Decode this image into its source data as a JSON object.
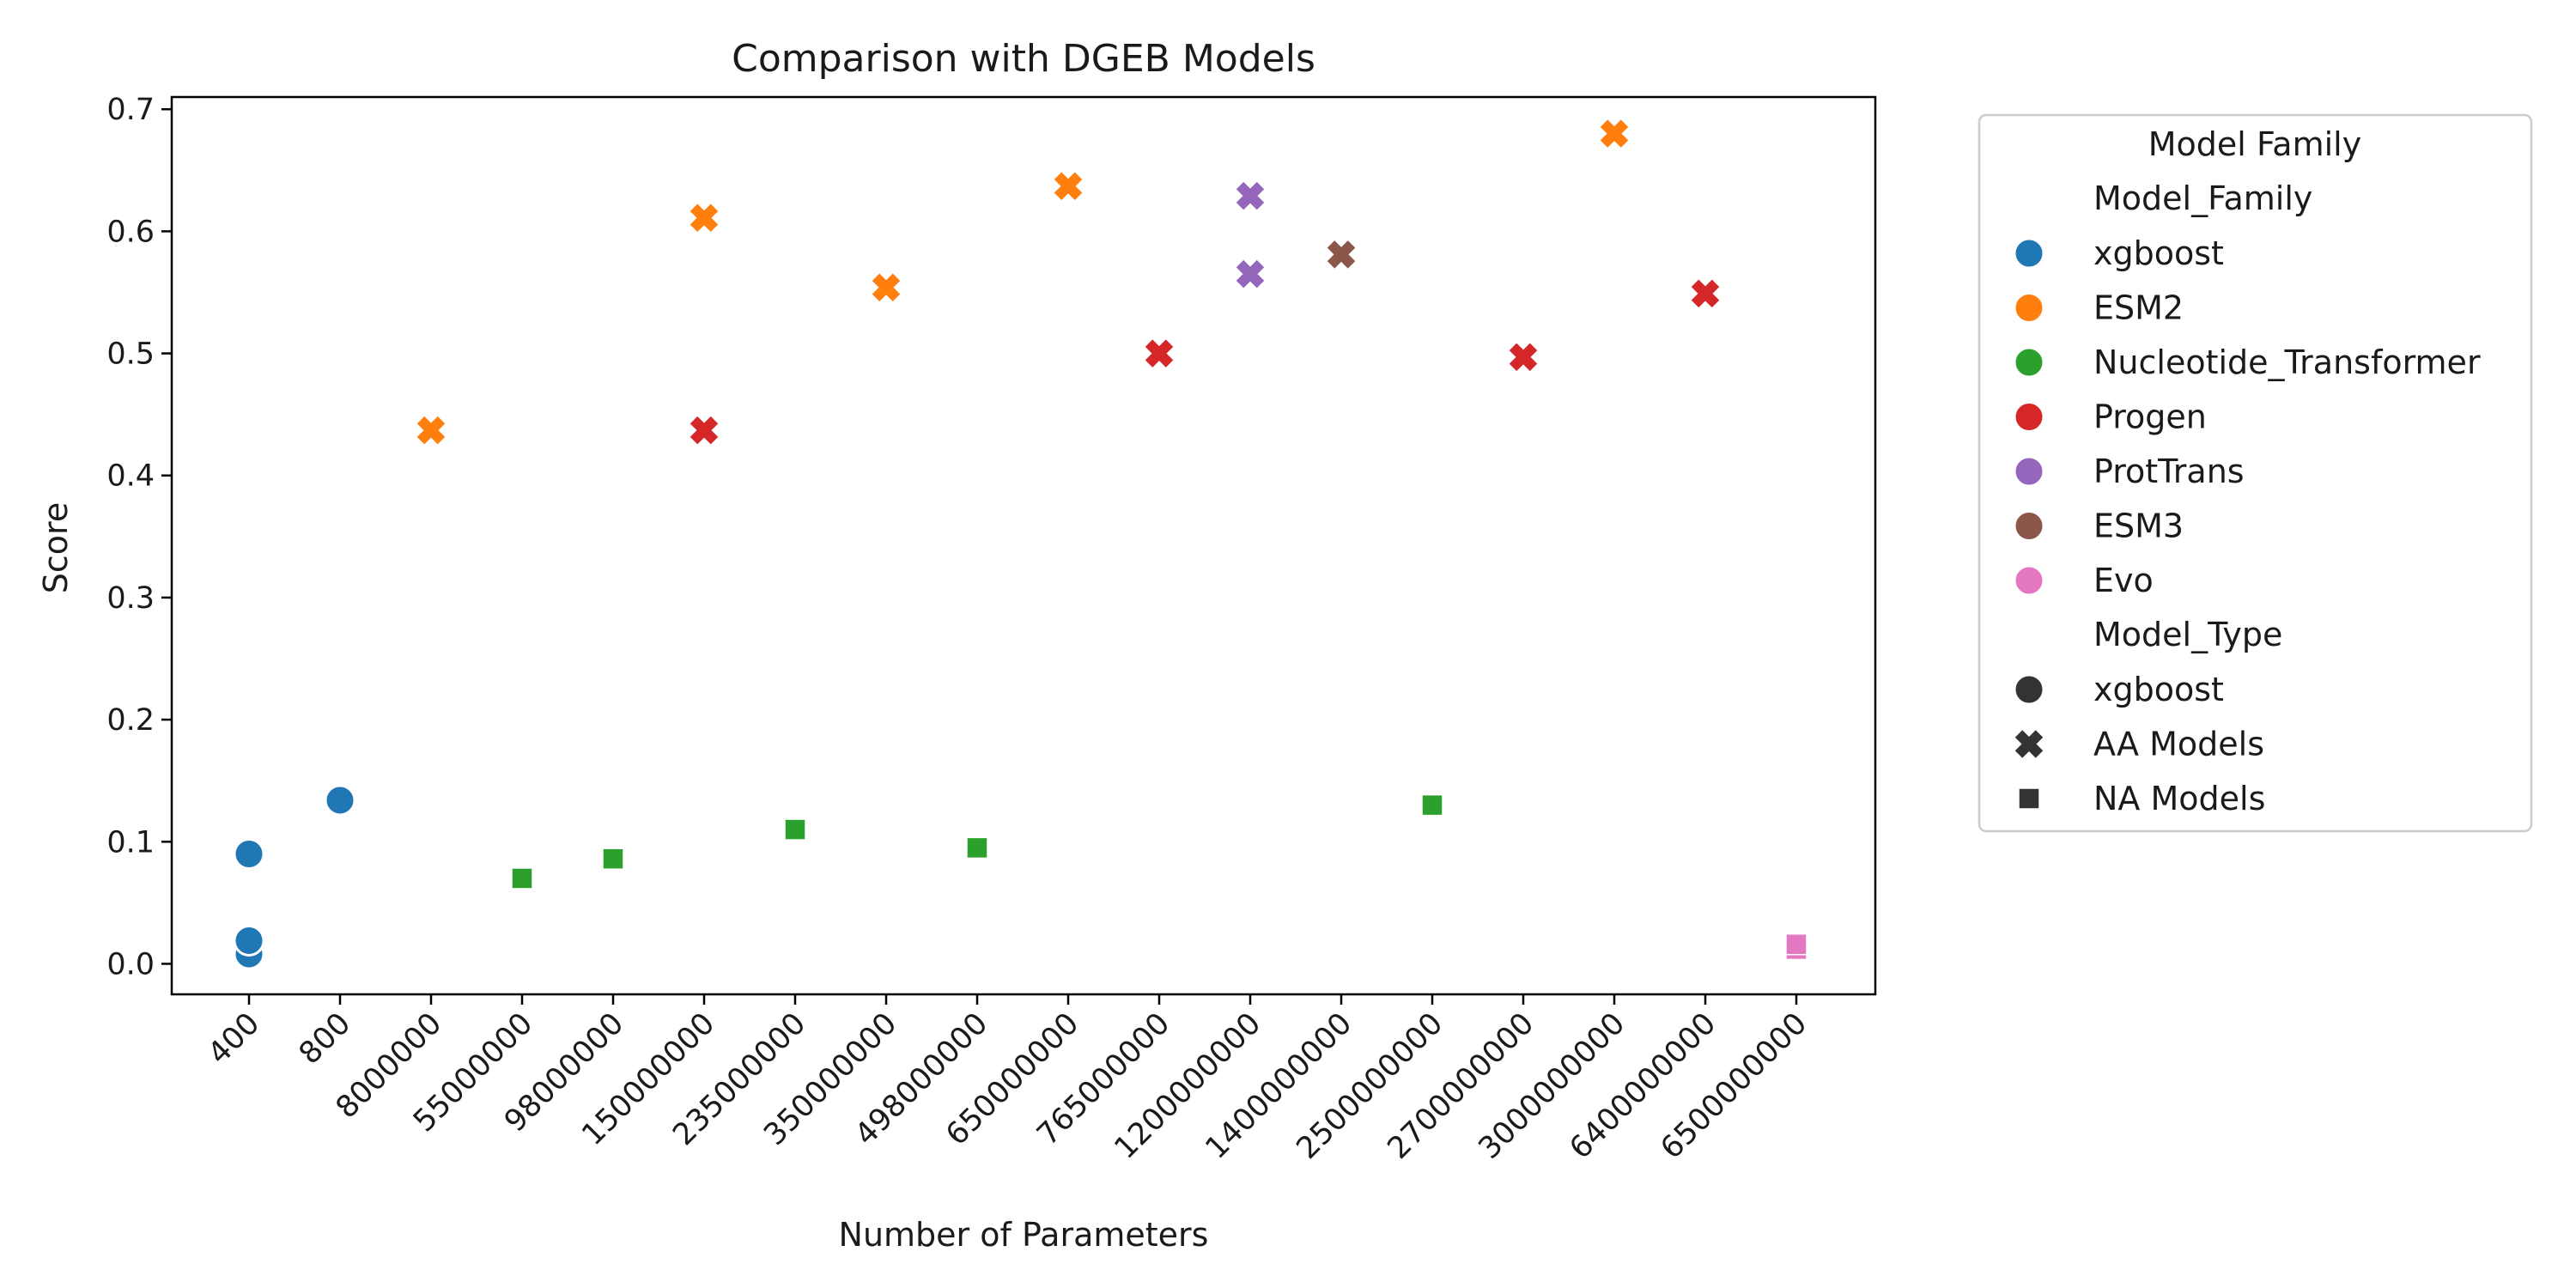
{
  "chart_data": {
    "type": "scatter",
    "title": "Comparison with DGEB Models",
    "xlabel": "Number of Parameters",
    "ylabel": "Score",
    "x_scale": "categorical",
    "categories": [
      "400",
      "800",
      "8000000",
      "55000000",
      "98000000",
      "150000000",
      "235000000",
      "350000000",
      "498000000",
      "650000000",
      "765000000",
      "1200000000",
      "1400000000",
      "2500000000",
      "2700000000",
      "3000000000",
      "6400000000",
      "6500000000"
    ],
    "ylim": [
      -0.025,
      0.71
    ],
    "yticks": [
      0.0,
      0.1,
      0.2,
      0.3,
      0.4,
      0.5,
      0.6,
      0.7
    ],
    "ytick_labels": [
      "0.0",
      "0.1",
      "0.2",
      "0.3",
      "0.4",
      "0.5",
      "0.6",
      "0.7"
    ],
    "grid": false,
    "legend": {
      "title": "Model Family",
      "placement": "outside-right",
      "hue_header": "Model_Family",
      "style_header": "Model_Type",
      "families": [
        {
          "name": "xgboost",
          "color": "#1f77b4"
        },
        {
          "name": "ESM2",
          "color": "#ff7f0e"
        },
        {
          "name": "Nucleotide_Transformer",
          "color": "#2ca02c"
        },
        {
          "name": "Progen",
          "color": "#d62728"
        },
        {
          "name": "ProtTrans",
          "color": "#9467bd"
        },
        {
          "name": "ESM3",
          "color": "#8c564b"
        },
        {
          "name": "Evo",
          "color": "#e377c2"
        }
      ],
      "types": [
        {
          "name": "xgboost",
          "marker": "circle"
        },
        {
          "name": "AA Models",
          "marker": "x"
        },
        {
          "name": "NA Models",
          "marker": "square"
        }
      ],
      "type_marker_color": "#333333"
    },
    "series": [
      {
        "name": "xgboost",
        "type": "xgboost",
        "points": [
          {
            "x": "400",
            "y": 0.008
          },
          {
            "x": "400",
            "y": 0.019
          },
          {
            "x": "400",
            "y": 0.09
          },
          {
            "x": "800",
            "y": 0.134
          }
        ]
      },
      {
        "name": "ESM2",
        "type": "AA Models",
        "points": [
          {
            "x": "8000000",
            "y": 0.437
          },
          {
            "x": "150000000",
            "y": 0.611
          },
          {
            "x": "350000000",
            "y": 0.554
          },
          {
            "x": "650000000",
            "y": 0.637
          },
          {
            "x": "3000000000",
            "y": 0.68
          }
        ]
      },
      {
        "name": "Nucleotide_Transformer",
        "type": "NA Models",
        "points": [
          {
            "x": "55000000",
            "y": 0.07
          },
          {
            "x": "98000000",
            "y": 0.086
          },
          {
            "x": "235000000",
            "y": 0.11
          },
          {
            "x": "498000000",
            "y": 0.095
          },
          {
            "x": "2500000000",
            "y": 0.13
          }
        ]
      },
      {
        "name": "Progen",
        "type": "AA Models",
        "points": [
          {
            "x": "150000000",
            "y": 0.437
          },
          {
            "x": "765000000",
            "y": 0.5
          },
          {
            "x": "2700000000",
            "y": 0.497
          },
          {
            "x": "6400000000",
            "y": 0.549
          }
        ]
      },
      {
        "name": "ProtTrans",
        "type": "AA Models",
        "points": [
          {
            "x": "1200000000",
            "y": 0.565
          },
          {
            "x": "1200000000",
            "y": 0.629
          }
        ]
      },
      {
        "name": "ESM3",
        "type": "AA Models",
        "points": [
          {
            "x": "1400000000",
            "y": 0.581
          }
        ]
      },
      {
        "name": "Evo",
        "type": "NA Models",
        "points": [
          {
            "x": "6500000000",
            "y": 0.012
          },
          {
            "x": "6500000000",
            "y": 0.016
          }
        ]
      }
    ]
  }
}
